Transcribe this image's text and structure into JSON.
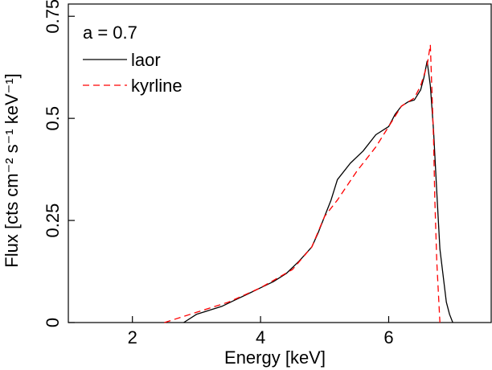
{
  "chart_data": {
    "type": "line",
    "annotation": "a = 0.7",
    "xlabel": "Energy [keV]",
    "ylabel": "Flux [cts cm⁻² s⁻¹ keV⁻¹]",
    "xlim": [
      1.0,
      7.6
    ],
    "ylim": [
      0,
      0.78
    ],
    "xticks": [
      2,
      4,
      6
    ],
    "xtick_labels": [
      "2",
      "4",
      "6"
    ],
    "yticks": [
      0,
      0.25,
      0.5,
      0.75
    ],
    "ytick_labels": [
      "0",
      "0.25",
      "0.5",
      "0.75"
    ],
    "grid": false,
    "legend_position": "top-left",
    "series": [
      {
        "name": "laor",
        "color": "#000000",
        "style": "solid",
        "x": [
          2.8,
          3.0,
          3.2,
          3.4,
          3.6,
          3.8,
          4.0,
          4.2,
          4.4,
          4.6,
          4.8,
          4.9,
          5.0,
          5.1,
          5.2,
          5.4,
          5.6,
          5.8,
          6.0,
          6.1,
          6.2,
          6.3,
          6.4,
          6.5,
          6.55,
          6.6,
          6.65,
          6.7,
          6.75,
          6.8,
          6.9,
          6.95,
          7.0
        ],
        "y": [
          0.0,
          0.02,
          0.03,
          0.04,
          0.055,
          0.07,
          0.085,
          0.1,
          0.12,
          0.15,
          0.185,
          0.22,
          0.26,
          0.3,
          0.35,
          0.39,
          0.42,
          0.46,
          0.48,
          0.51,
          0.53,
          0.54,
          0.545,
          0.57,
          0.6,
          0.64,
          0.58,
          0.47,
          0.32,
          0.18,
          0.05,
          0.02,
          0.0
        ]
      },
      {
        "name": "kyrline",
        "color": "#ff0000",
        "style": "dashed",
        "x": [
          2.5,
          3.0,
          3.5,
          4.0,
          4.5,
          4.8,
          5.0,
          5.2,
          5.5,
          5.8,
          6.0,
          6.2,
          6.4,
          6.5,
          6.6,
          6.65,
          6.7,
          6.72,
          6.75,
          6.8
        ],
        "y": [
          0.0,
          0.025,
          0.05,
          0.085,
          0.13,
          0.185,
          0.26,
          0.3,
          0.37,
          0.43,
          0.48,
          0.53,
          0.55,
          0.58,
          0.63,
          0.68,
          0.45,
          0.3,
          0.15,
          0.0
        ]
      }
    ]
  }
}
